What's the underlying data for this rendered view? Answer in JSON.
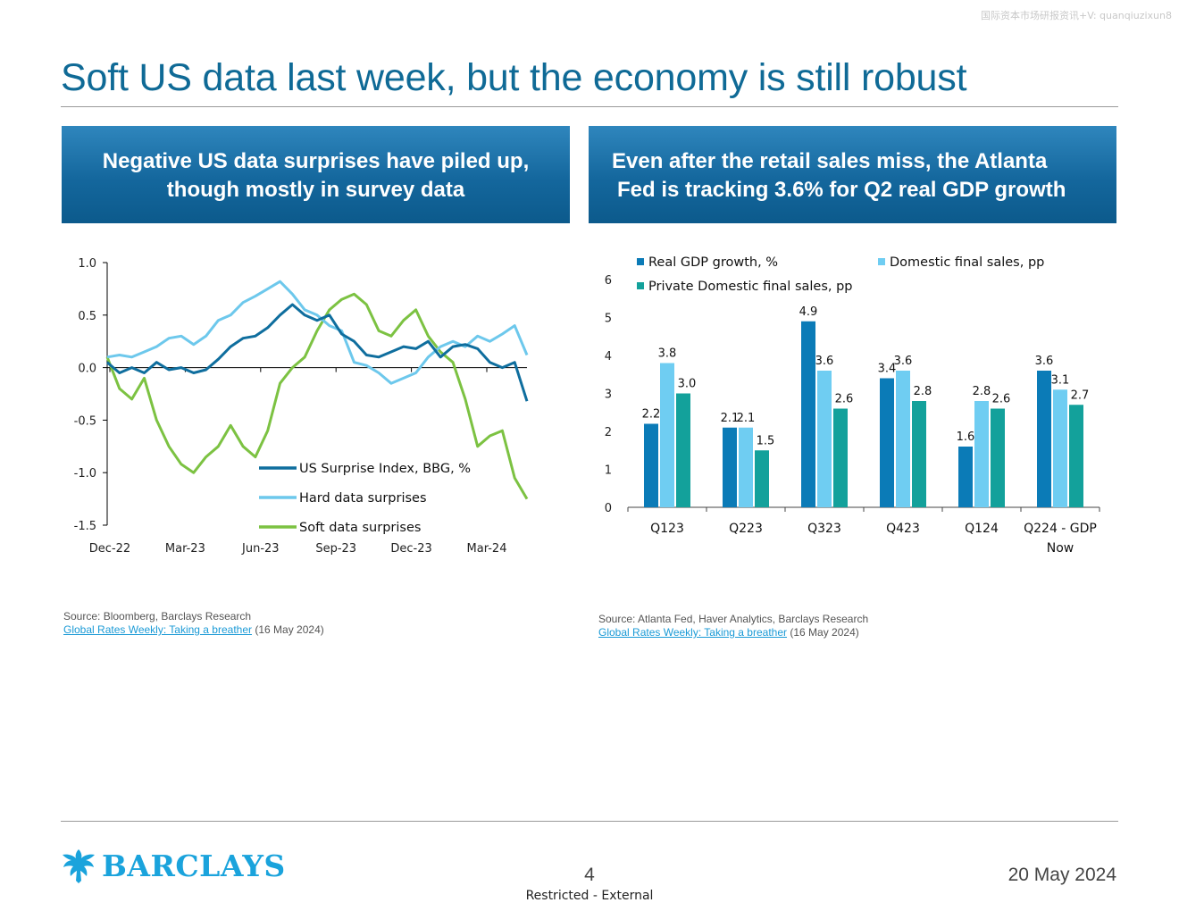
{
  "watermark": "国际资本市场研报资讯+V: quanqiuzixun8",
  "title": "Soft US data last week, but the economy is still robust",
  "left_panel": {
    "heading_line1": "Negative US data surprises have piled up,",
    "heading_line2": "though mostly in survey data",
    "source": "Source: Bloomberg, Barclays Research",
    "link_text": "Global Rates Weekly: Taking a breather",
    "link_date": "(16 May 2024)"
  },
  "right_panel": {
    "heading_line1": "Even after the retail sales miss, the Atlanta",
    "heading_line2": "Fed is tracking 3.6% for Q2 real GDP growth",
    "source": "Source: Atlanta Fed, Haver Analytics, Barclays Research",
    "link_text": "Global Rates Weekly: Taking a breather",
    "link_date": "(16 May 2024)"
  },
  "chart_data": [
    {
      "type": "line",
      "title": "",
      "x_ticks": [
        "Dec-22",
        "Mar-23",
        "Jun-23",
        "Sep-23",
        "Dec-23",
        "Mar-24"
      ],
      "y_ticks": [
        "1.0",
        "0.5",
        "0.0",
        "-0.5",
        "-1.0",
        "-1.5"
      ],
      "ylim": [
        -1.5,
        1.0
      ],
      "x_range": [
        "2022-12",
        "2024-05"
      ],
      "legend_position": "bottom-right",
      "series": [
        {
          "name": "US Surprise Index, BBG, %",
          "color": "#0f6e9e",
          "x": [
            0,
            0.5,
            1,
            1.5,
            2,
            2.5,
            3,
            3.5,
            4,
            4.5,
            5,
            5.5,
            6,
            6.5,
            7,
            7.5,
            8,
            8.5,
            9,
            9.5,
            10,
            10.5,
            11,
            11.5,
            12,
            12.5,
            13,
            13.5,
            14,
            14.5,
            15,
            15.5,
            16,
            16.5,
            17
          ],
          "y": [
            0.05,
            -0.05,
            0.0,
            -0.05,
            0.05,
            -0.02,
            0.0,
            -0.05,
            -0.02,
            0.08,
            0.2,
            0.28,
            0.3,
            0.38,
            0.5,
            0.6,
            0.5,
            0.45,
            0.5,
            0.32,
            0.25,
            0.12,
            0.1,
            0.15,
            0.2,
            0.18,
            0.25,
            0.1,
            0.2,
            0.22,
            0.18,
            0.05,
            0.0,
            0.05,
            -0.32
          ]
        },
        {
          "name": "Hard data surprises",
          "color": "#6dc8ec",
          "x": [
            0,
            0.5,
            1,
            1.5,
            2,
            2.5,
            3,
            3.5,
            4,
            4.5,
            5,
            5.5,
            6,
            6.5,
            7,
            7.5,
            8,
            8.5,
            9,
            9.5,
            10,
            10.5,
            11,
            11.5,
            12,
            12.5,
            13,
            13.5,
            14,
            14.5,
            15,
            15.5,
            16,
            16.5,
            17
          ],
          "y": [
            0.1,
            0.12,
            0.1,
            0.15,
            0.2,
            0.28,
            0.3,
            0.22,
            0.3,
            0.45,
            0.5,
            0.62,
            0.68,
            0.75,
            0.82,
            0.7,
            0.55,
            0.5,
            0.4,
            0.35,
            0.05,
            0.02,
            -0.05,
            -0.15,
            -0.1,
            -0.05,
            0.1,
            0.2,
            0.25,
            0.2,
            0.3,
            0.25,
            0.32,
            0.4,
            0.12
          ]
        },
        {
          "name": "Soft data surprises",
          "color": "#7cc242",
          "x": [
            0,
            0.5,
            1,
            1.5,
            2,
            2.5,
            3,
            3.5,
            4,
            4.5,
            5,
            5.5,
            6,
            6.5,
            7,
            7.5,
            8,
            8.5,
            9,
            9.5,
            10,
            10.5,
            11,
            11.5,
            12,
            12.5,
            13,
            13.5,
            14,
            14.5,
            15,
            15.5,
            16,
            16.5,
            17
          ],
          "y": [
            0.1,
            -0.2,
            -0.3,
            -0.1,
            -0.5,
            -0.75,
            -0.92,
            -1.0,
            -0.85,
            -0.75,
            -0.55,
            -0.75,
            -0.85,
            -0.6,
            -0.15,
            0.0,
            0.1,
            0.35,
            0.55,
            0.65,
            0.7,
            0.6,
            0.35,
            0.3,
            0.45,
            0.55,
            0.3,
            0.15,
            0.05,
            -0.3,
            -0.75,
            -0.65,
            -0.6,
            -1.05,
            -1.25
          ]
        }
      ]
    },
    {
      "type": "bar",
      "title": "",
      "categories": [
        "Q123",
        "Q223",
        "Q323",
        "Q423",
        "Q124",
        "Q224 - GDP Now"
      ],
      "y_ticks": [
        "0",
        "1",
        "2",
        "3",
        "4",
        "5",
        "6"
      ],
      "ylim": [
        0,
        6
      ],
      "legend_position": "top",
      "series": [
        {
          "name": "Real GDP growth, %",
          "color": "#0b7bb7",
          "values": [
            2.2,
            2.1,
            4.9,
            3.4,
            1.6,
            3.6
          ],
          "labels": [
            "2.2",
            "2.1",
            "4.9",
            "3.4",
            "1.6",
            "3.6"
          ]
        },
        {
          "name": "Domestic final sales, pp",
          "color": "#6fcdf2",
          "values": [
            3.8,
            2.1,
            3.6,
            3.6,
            2.8,
            3.1
          ],
          "labels": [
            "3.8",
            "2.1",
            "3.6",
            "3.6",
            "2.8",
            "3.1"
          ]
        },
        {
          "name": "Private Domestic final sales, pp",
          "color": "#13a19b",
          "values": [
            3.0,
            1.5,
            2.6,
            2.8,
            2.6,
            2.7
          ],
          "labels": [
            "3.0",
            "1.5",
            "2.6",
            "2.8",
            "2.6",
            "2.7"
          ]
        }
      ]
    }
  ],
  "footer": {
    "logo_text": "BARCLAYS",
    "page_number": "4",
    "classification": "Restricted - External",
    "date": "20 May 2024"
  }
}
